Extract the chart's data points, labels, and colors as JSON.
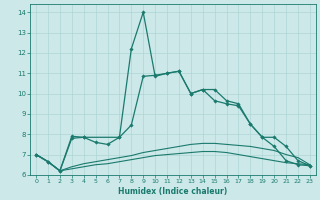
{
  "xlabel": "Humidex (Indice chaleur)",
  "background_color": "#cce8e8",
  "grid_color": "#aed4d4",
  "line_color": "#1a7a6e",
  "xlim": [
    -0.5,
    23.5
  ],
  "ylim": [
    6,
    14.4
  ],
  "xticks": [
    0,
    1,
    2,
    3,
    4,
    5,
    6,
    7,
    8,
    9,
    10,
    11,
    12,
    13,
    14,
    15,
    16,
    17,
    18,
    19,
    20,
    21,
    22,
    23
  ],
  "yticks": [
    6,
    7,
    8,
    9,
    10,
    11,
    12,
    13,
    14
  ],
  "series1_x": [
    0,
    1,
    2,
    3,
    4,
    7,
    8,
    9,
    10,
    11,
    12,
    13,
    14,
    15,
    16,
    17,
    18,
    19,
    20,
    21,
    22,
    23
  ],
  "series1_y": [
    7.0,
    6.65,
    6.2,
    7.9,
    7.85,
    7.85,
    12.2,
    14.0,
    10.85,
    11.0,
    11.1,
    10.0,
    10.2,
    10.2,
    9.65,
    9.5,
    8.5,
    7.85,
    7.4,
    6.7,
    6.5,
    6.45
  ],
  "series2_x": [
    0,
    1,
    2,
    3,
    4,
    5,
    6,
    7,
    8,
    9,
    10,
    11,
    12,
    13,
    14,
    15,
    16,
    17,
    18,
    19,
    20,
    21,
    22,
    23
  ],
  "series2_y": [
    7.0,
    6.65,
    6.2,
    7.8,
    7.85,
    7.6,
    7.5,
    7.85,
    8.45,
    10.85,
    10.9,
    11.0,
    11.1,
    10.0,
    10.2,
    9.65,
    9.5,
    9.4,
    8.5,
    7.85,
    7.85,
    7.4,
    6.7,
    6.45
  ],
  "series3_x": [
    0,
    1,
    2,
    3,
    4,
    5,
    6,
    7,
    8,
    9,
    10,
    11,
    12,
    13,
    14,
    15,
    16,
    17,
    18,
    19,
    20,
    21,
    22,
    23
  ],
  "series3_y": [
    7.0,
    6.65,
    6.2,
    6.4,
    6.55,
    6.65,
    6.75,
    6.85,
    6.95,
    7.1,
    7.2,
    7.3,
    7.4,
    7.5,
    7.55,
    7.55,
    7.5,
    7.45,
    7.4,
    7.3,
    7.2,
    7.0,
    6.85,
    6.5
  ],
  "series4_x": [
    0,
    1,
    2,
    3,
    4,
    5,
    6,
    7,
    8,
    9,
    10,
    11,
    12,
    13,
    14,
    15,
    16,
    17,
    18,
    19,
    20,
    21,
    22,
    23
  ],
  "series4_y": [
    7.0,
    6.65,
    6.2,
    6.3,
    6.4,
    6.5,
    6.55,
    6.65,
    6.75,
    6.85,
    6.95,
    7.0,
    7.05,
    7.1,
    7.15,
    7.15,
    7.1,
    7.0,
    6.9,
    6.8,
    6.7,
    6.6,
    6.55,
    6.5
  ]
}
